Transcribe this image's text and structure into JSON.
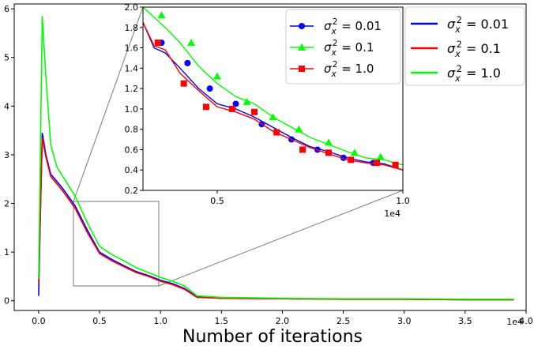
{
  "chart_data": {
    "type": "line",
    "xlabel": "Number of iterations",
    "ylabel": "",
    "x_offset_label": "1e4",
    "xlim": [
      -0.2,
      4.0
    ],
    "ylim": [
      -0.2,
      6.1
    ],
    "xticks": [
      0.0,
      0.5,
      1.0,
      1.5,
      2.0,
      2.5,
      3.0,
      3.5,
      4.0
    ],
    "xtick_labels": [
      "0.0",
      "0.5",
      "1.0",
      "1.5",
      "2.0",
      "2.5",
      "3.0",
      "3.5",
      "4.0"
    ],
    "yticks": [
      0,
      1,
      2,
      3,
      4,
      5,
      6
    ],
    "ytick_labels": [
      "0",
      "1",
      "2",
      "3",
      "4",
      "5",
      "6"
    ],
    "grid": false,
    "legend_placement": "top-right",
    "series": [
      {
        "name": "σx² = 0.01",
        "legend_label": "σ_x² = 0.01",
        "color": "#0000ff",
        "x": [
          0.0,
          0.03,
          0.06,
          0.1,
          0.15,
          0.2,
          0.3,
          0.4,
          0.5,
          0.6,
          0.7,
          0.8,
          0.9,
          1.0,
          1.1,
          1.2,
          1.3,
          1.5,
          2.0,
          2.5,
          3.0,
          3.5,
          3.9
        ],
        "y": [
          0.1,
          3.45,
          3.0,
          2.6,
          2.45,
          2.3,
          1.95,
          1.45,
          1.0,
          0.85,
          0.72,
          0.6,
          0.52,
          0.42,
          0.35,
          0.25,
          0.08,
          0.05,
          0.04,
          0.03,
          0.03,
          0.02,
          0.02
        ]
      },
      {
        "name": "σx² = 0.1",
        "legend_label": "σ_x² = 0.1",
        "color": "#ff0000",
        "x": [
          0.0,
          0.03,
          0.06,
          0.1,
          0.15,
          0.2,
          0.3,
          0.4,
          0.5,
          0.6,
          0.7,
          0.8,
          0.9,
          1.0,
          1.1,
          1.2,
          1.3,
          1.5,
          2.0,
          2.5,
          3.0,
          3.5,
          3.9
        ],
        "y": [
          0.35,
          3.35,
          2.95,
          2.55,
          2.4,
          2.25,
          1.9,
          1.4,
          0.97,
          0.82,
          0.7,
          0.58,
          0.5,
          0.4,
          0.33,
          0.23,
          0.07,
          0.05,
          0.04,
          0.03,
          0.03,
          0.02,
          0.02
        ]
      },
      {
        "name": "σx² = 1.0",
        "legend_label": "σ_x² = 1.0",
        "color": "#00ff00",
        "x": [
          0.0,
          0.03,
          0.06,
          0.1,
          0.15,
          0.2,
          0.3,
          0.4,
          0.5,
          0.6,
          0.7,
          0.8,
          0.9,
          1.0,
          1.1,
          1.2,
          1.3,
          1.5,
          2.0,
          2.5,
          3.0,
          3.5,
          3.9
        ],
        "y": [
          0.45,
          5.85,
          4.6,
          3.2,
          2.75,
          2.55,
          2.15,
          1.6,
          1.12,
          0.95,
          0.82,
          0.68,
          0.58,
          0.48,
          0.4,
          0.3,
          0.1,
          0.07,
          0.05,
          0.04,
          0.04,
          0.03,
          0.03
        ]
      }
    ],
    "inset": {
      "x_offset_label": "1e4",
      "xlim": [
        0.3,
        1.0
      ],
      "ylim": [
        0.2,
        2.0
      ],
      "xticks": [
        0.5,
        1.0
      ],
      "xtick_labels": [
        "0.5",
        "1.0"
      ],
      "yticks": [
        0.2,
        0.4,
        0.6,
        0.8,
        1.0,
        1.2,
        1.4,
        1.6,
        1.8,
        2.0
      ],
      "ytick_labels": [
        "0.2",
        "0.4",
        "0.6",
        "0.8",
        "1.0",
        "1.2",
        "1.4",
        "1.6",
        "1.8",
        "2.0"
      ],
      "legend_placement": "top-right",
      "series": [
        {
          "name": "σx² = 0.01",
          "legend_label": "σ_x² = 0.01",
          "color": "#0000ff",
          "marker": "circle",
          "x": [
            0.3,
            0.33,
            0.36,
            0.4,
            0.45,
            0.5,
            0.55,
            0.6,
            0.65,
            0.7,
            0.75,
            0.8,
            0.85,
            0.9,
            0.95,
            1.0
          ],
          "y": [
            1.85,
            1.6,
            1.55,
            1.4,
            1.2,
            1.05,
            1.0,
            0.92,
            0.82,
            0.72,
            0.63,
            0.58,
            0.52,
            0.48,
            0.46,
            0.4
          ],
          "marker_x": [
            0.35,
            0.42,
            0.48,
            0.55,
            0.62,
            0.7,
            0.77,
            0.84,
            0.92,
            0.98
          ],
          "marker_y": [
            1.65,
            1.45,
            1.2,
            1.05,
            0.85,
            0.7,
            0.6,
            0.52,
            0.47,
            0.45
          ]
        },
        {
          "name": "σx² = 0.1",
          "legend_label": "σ_x² = 0.1",
          "color": "#00ff00",
          "marker": "triangle",
          "x": [
            0.3,
            0.33,
            0.36,
            0.4,
            0.45,
            0.5,
            0.55,
            0.6,
            0.65,
            0.7,
            0.75,
            0.8,
            0.85,
            0.9,
            0.95,
            1.0
          ],
          "y": [
            2.0,
            1.9,
            1.8,
            1.65,
            1.42,
            1.25,
            1.12,
            1.05,
            0.92,
            0.82,
            0.72,
            0.65,
            0.58,
            0.52,
            0.5,
            0.45
          ],
          "marker_x": [
            0.35,
            0.43,
            0.5,
            0.58,
            0.65,
            0.72,
            0.8,
            0.87,
            0.94
          ],
          "marker_y": [
            1.92,
            1.65,
            1.32,
            1.07,
            0.92,
            0.8,
            0.67,
            0.57,
            0.53
          ]
        },
        {
          "name": "σx² = 1.0",
          "legend_label": "σ_x² = 1.0",
          "color": "#ff0000",
          "marker": "square",
          "x": [
            0.3,
            0.33,
            0.36,
            0.4,
            0.45,
            0.5,
            0.55,
            0.6,
            0.65,
            0.7,
            0.75,
            0.8,
            0.85,
            0.9,
            0.95,
            1.0
          ],
          "y": [
            1.85,
            1.62,
            1.58,
            1.35,
            1.18,
            1.02,
            0.97,
            0.9,
            0.78,
            0.7,
            0.62,
            0.56,
            0.5,
            0.47,
            0.45,
            0.4
          ],
          "marker_x": [
            0.34,
            0.41,
            0.47,
            0.54,
            0.6,
            0.66,
            0.73,
            0.8,
            0.86,
            0.93,
            0.98
          ],
          "marker_y": [
            1.65,
            1.25,
            1.02,
            1.0,
            0.97,
            0.77,
            0.6,
            0.57,
            0.5,
            0.47,
            0.45
          ]
        }
      ]
    }
  }
}
